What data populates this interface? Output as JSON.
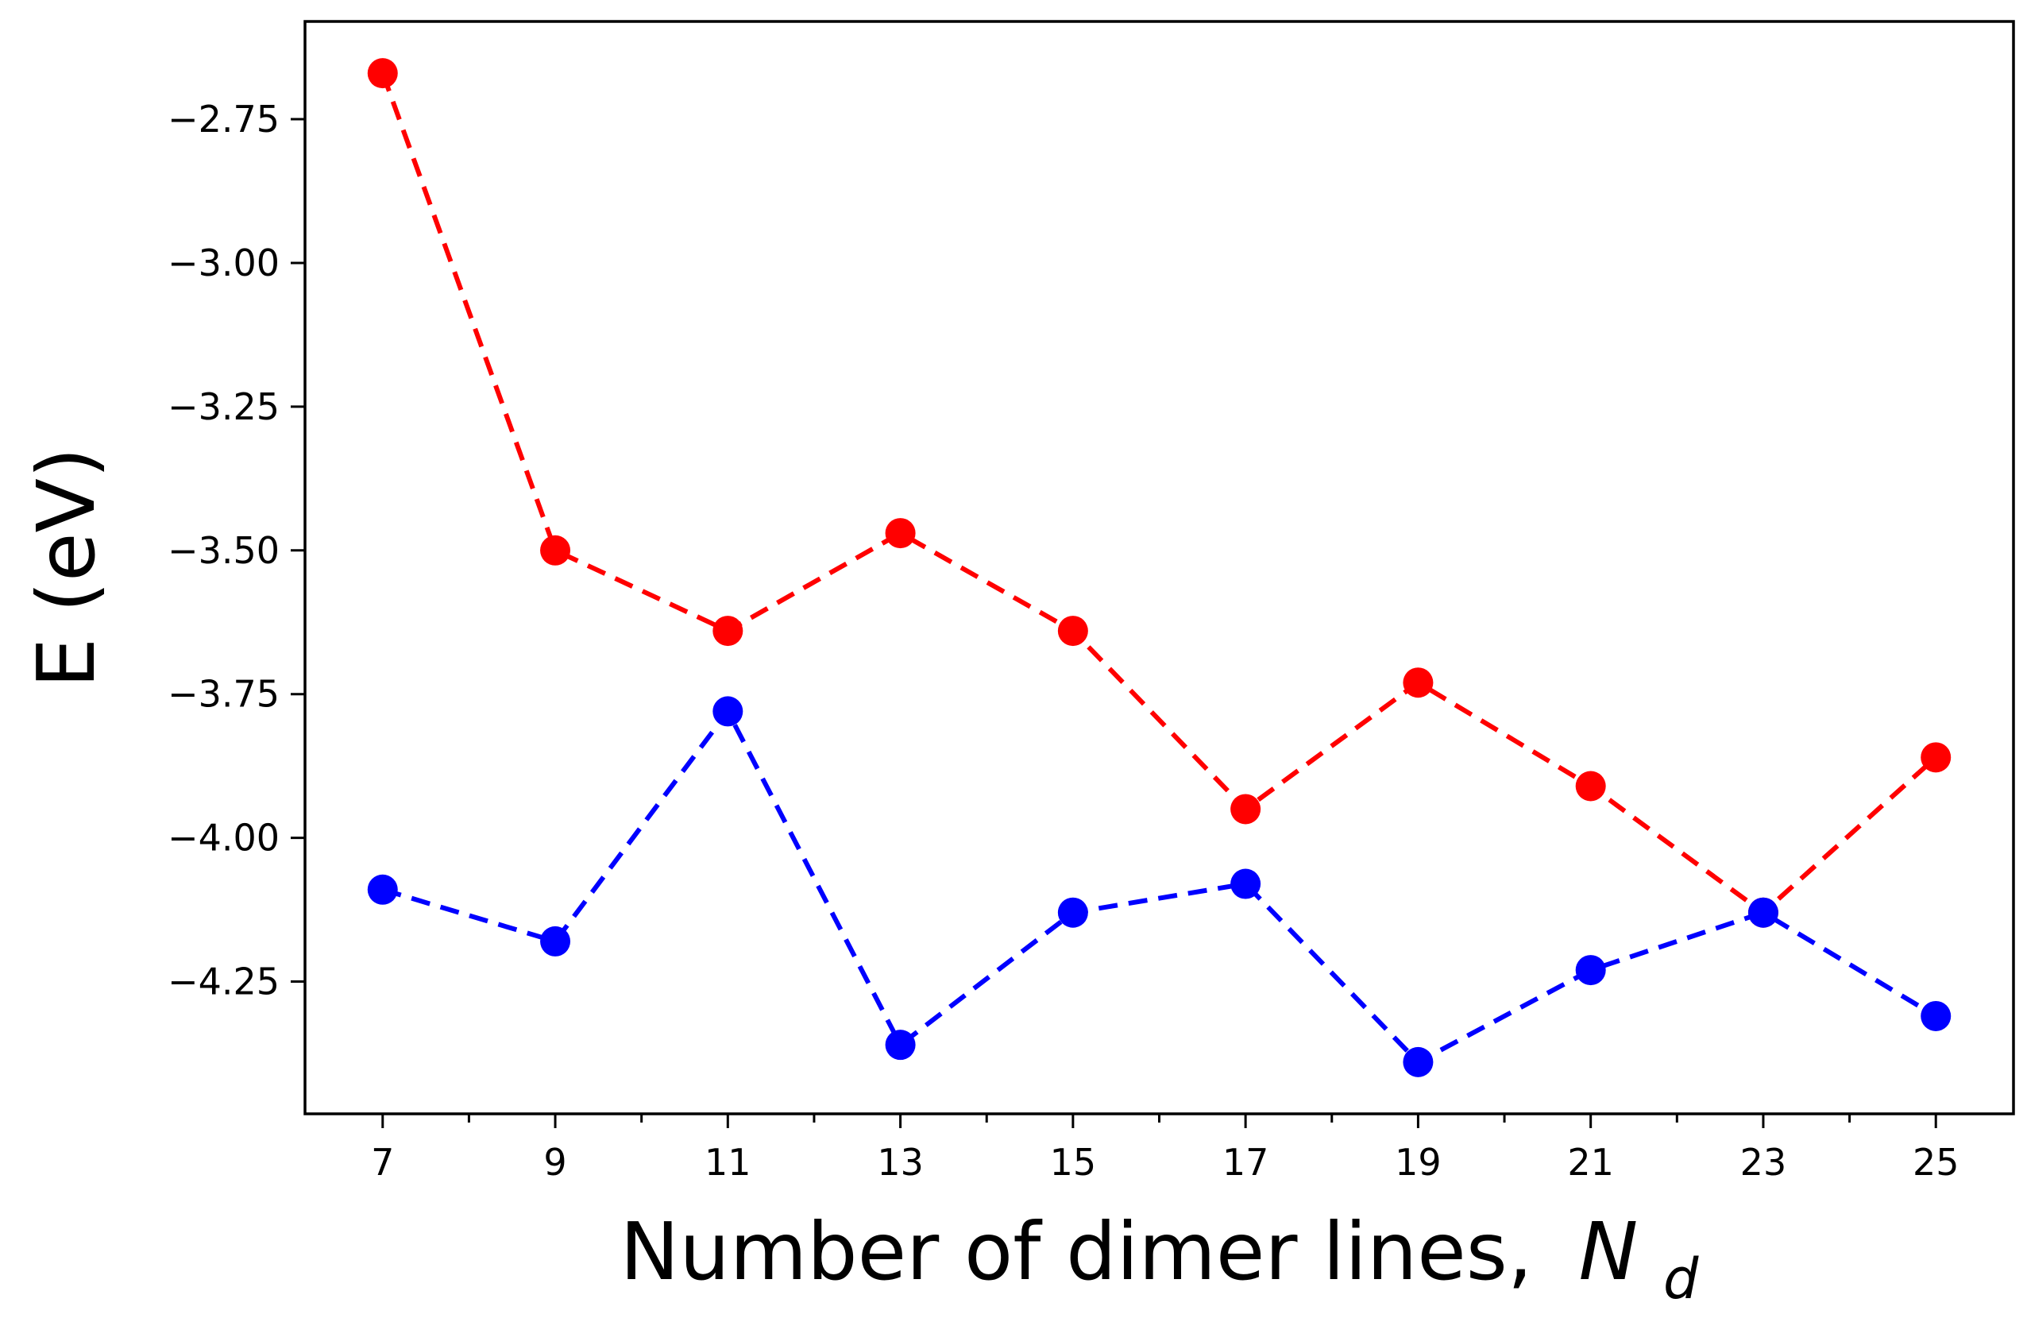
{
  "chart_data": {
    "type": "line",
    "title": "",
    "xlabel": "Number of dimer lines,",
    "xlabel_math": {
      "symbol": "N",
      "subscript": "d"
    },
    "ylabel": "E (eV)",
    "x": [
      7,
      9,
      11,
      13,
      15,
      17,
      19,
      21,
      23,
      25
    ],
    "x_tick_labels": [
      "7",
      "9",
      "11",
      "13",
      "15",
      "17",
      "19",
      "21",
      "23",
      "25"
    ],
    "x_minor_ticks": [
      8,
      10,
      12,
      14,
      16,
      18,
      20,
      22,
      24
    ],
    "xlim": [
      6.1,
      25.9
    ],
    "y_ticks": [
      -2.75,
      -3.0,
      -3.25,
      -3.5,
      -3.75,
      -4.0,
      -4.25
    ],
    "y_tick_labels": [
      "−2.75",
      "−3.00",
      "−3.25",
      "−3.50",
      "−3.75",
      "−4.00",
      "−4.25"
    ],
    "ylim": [
      -4.48,
      -2.58
    ],
    "grid": false,
    "legend": "none",
    "series": [
      {
        "color": "#ff0000",
        "line_style": "dashed",
        "marker": "circle",
        "values": [
          -2.67,
          -3.5,
          -3.64,
          -3.47,
          -3.64,
          -3.95,
          -3.73,
          -3.91,
          -4.13,
          -3.86
        ]
      },
      {
        "color": "#0000ff",
        "line_style": "dashed",
        "marker": "circle",
        "values": [
          -4.09,
          -4.18,
          -3.78,
          -4.36,
          -4.13,
          -4.08,
          -4.39,
          -4.23,
          -4.13,
          -4.31
        ]
      }
    ]
  }
}
